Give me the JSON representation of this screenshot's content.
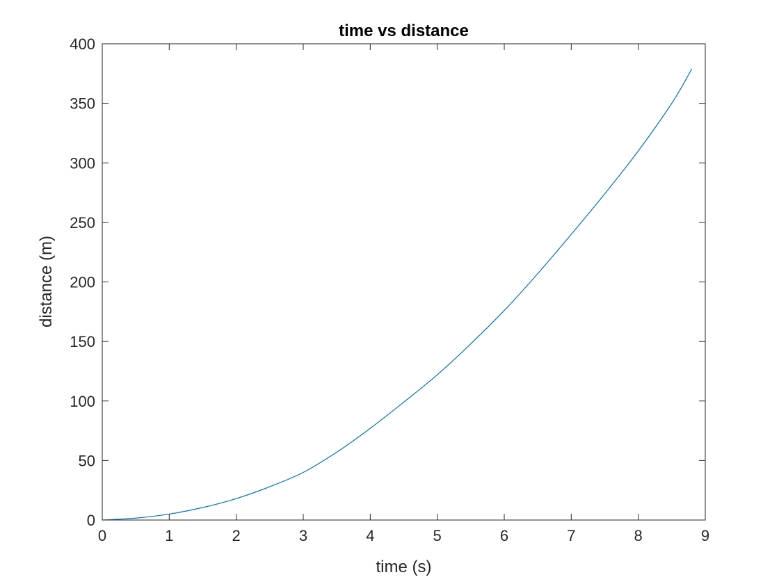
{
  "chart_data": {
    "type": "line",
    "title": "time vs distance",
    "xlabel": "time (s)",
    "ylabel": "distance (m)",
    "xlim": [
      0,
      9
    ],
    "ylim": [
      0,
      400
    ],
    "xticks": [
      "0",
      "1",
      "2",
      "3",
      "4",
      "5",
      "6",
      "7",
      "8",
      "9"
    ],
    "yticks": [
      "0",
      "50",
      "100",
      "150",
      "200",
      "250",
      "300",
      "350",
      "400"
    ],
    "grid": false,
    "legend": "none",
    "series": [
      {
        "color": "#0072BD",
        "x": [
          0,
          0.5,
          1,
          1.5,
          2,
          2.5,
          3,
          3.5,
          4,
          4.5,
          5,
          5.5,
          6,
          6.5,
          7,
          7.5,
          8,
          8.5,
          8.8
        ],
        "y": [
          0,
          1.6,
          5,
          10.5,
          18,
          28,
          40,
          57,
          77,
          99,
          122,
          148,
          176,
          207,
          240,
          274,
          310,
          350,
          379
        ]
      }
    ]
  }
}
